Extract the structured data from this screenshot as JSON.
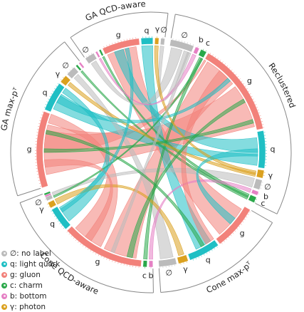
{
  "diagram": {
    "type": "chord",
    "sectors": [
      {
        "label": "Reclustered",
        "start": 10,
        "end": 116
      },
      {
        "label": "Cone max-pᵀ",
        "start": 120,
        "end": 176
      },
      {
        "label": "Cone QCD-aware",
        "start": 179,
        "end": 249
      },
      {
        "label": "GA max-pᵀ",
        "start": 252,
        "end": 322
      },
      {
        "label": "GA QCD-aware",
        "start": 325,
        "end": 7
      }
    ],
    "segments": [
      {
        "sector": 0,
        "type": "none",
        "label": "∅",
        "start": 10,
        "end": 22
      },
      {
        "sector": 0,
        "type": "bottom",
        "label": "b",
        "start": 23,
        "end": 25
      },
      {
        "sector": 0,
        "type": "charm",
        "label": "c",
        "start": 26,
        "end": 29
      },
      {
        "sector": 0,
        "type": "gluon",
        "label": "g",
        "start": 30,
        "end": 78
      },
      {
        "sector": 0,
        "type": "light",
        "label": "q",
        "start": 79,
        "end": 98
      },
      {
        "sector": 0,
        "type": "photon",
        "label": "γ",
        "start": 99,
        "end": 103
      },
      {
        "sector": 0,
        "type": "none",
        "label": "∅",
        "start": 104,
        "end": 109
      },
      {
        "sector": 0,
        "type": "bottom",
        "label": "b",
        "start": 110,
        "end": 112
      },
      {
        "sector": 0,
        "type": "charm",
        "label": "c",
        "start": 113,
        "end": 116
      },
      {
        "sector": 1,
        "type": "gluon",
        "label": "g",
        "start": 120,
        "end": 143
      },
      {
        "sector": 1,
        "type": "light",
        "label": "q",
        "start": 144,
        "end": 160
      },
      {
        "sector": 1,
        "type": "photon",
        "label": "γ",
        "start": 161,
        "end": 166
      },
      {
        "sector": 1,
        "type": "none",
        "label": "∅",
        "start": 167,
        "end": 176
      },
      {
        "sector": 2,
        "type": "bottom",
        "label": "b",
        "start": 179,
        "end": 181
      },
      {
        "sector": 2,
        "type": "charm",
        "label": "c",
        "start": 182,
        "end": 184
      },
      {
        "sector": 2,
        "type": "gluon",
        "label": "g",
        "start": 185,
        "end": 227
      },
      {
        "sector": 2,
        "type": "light",
        "label": "q",
        "start": 228,
        "end": 240
      },
      {
        "sector": 2,
        "type": "photon",
        "label": "γ",
        "start": 241,
        "end": 244
      },
      {
        "sector": 2,
        "type": "none",
        "label": "∅",
        "start": 245,
        "end": 247
      },
      {
        "sector": 2,
        "type": "bottom",
        "label": "b",
        "start": 247,
        "end": 248
      },
      {
        "sector": 2,
        "type": "charm",
        "label": "c",
        "start": 248,
        "end": 249
      },
      {
        "sector": 3,
        "type": "gluon",
        "label": "g",
        "start": 252,
        "end": 291
      },
      {
        "sector": 3,
        "type": "light",
        "label": "q",
        "start": 292,
        "end": 307
      },
      {
        "sector": 3,
        "type": "photon",
        "label": "γ",
        "start": 308,
        "end": 312
      },
      {
        "sector": 3,
        "type": "none",
        "label": "∅",
        "start": 313,
        "end": 318
      },
      {
        "sector": 3,
        "type": "charm",
        "label": "c",
        "start": 319,
        "end": 320
      },
      {
        "sector": 3,
        "type": "bottom",
        "label": "b",
        "start": 321,
        "end": 322
      },
      {
        "sector": 4,
        "type": "none",
        "label": "∅",
        "start": 325,
        "end": 330
      },
      {
        "sector": 4,
        "type": "bottom",
        "label": "b",
        "start": 331,
        "end": 332
      },
      {
        "sector": 4,
        "type": "charm",
        "label": "c",
        "start": 333,
        "end": 334
      },
      {
        "sector": 4,
        "type": "gluon",
        "label": "g",
        "start": 335,
        "end": 354
      },
      {
        "sector": 4,
        "type": "light",
        "label": "q",
        "start": 355,
        "end": 361
      },
      {
        "sector": 4,
        "type": "photon",
        "label": "γ",
        "start": 362,
        "end": 364
      },
      {
        "sector": 4,
        "type": "none",
        "label": "∅",
        "start": 365,
        "end": 367
      }
    ],
    "chords": [
      {
        "type": "gluon",
        "a": [
          32,
          50
        ],
        "b": [
          188,
          206
        ]
      },
      {
        "type": "gluon",
        "a": [
          52,
          76
        ],
        "b": [
          258,
          285
        ]
      },
      {
        "type": "gluon",
        "a": [
          122,
          140
        ],
        "b": [
          336,
          352
        ]
      },
      {
        "type": "gluon",
        "a": [
          208,
          225
        ],
        "b": [
          286,
          291
        ]
      },
      {
        "type": "gluon",
        "a": [
          270,
          282
        ],
        "b": [
          30,
          31
        ]
      },
      {
        "type": "light",
        "a": [
          82,
          90
        ],
        "b": [
          340,
          345
        ]
      },
      {
        "type": "light",
        "a": [
          91,
          97
        ],
        "b": [
          294,
          303
        ]
      },
      {
        "type": "light",
        "a": [
          146,
          155
        ],
        "b": [
          355,
          361
        ]
      },
      {
        "type": "light",
        "a": [
          230,
          238
        ],
        "b": [
          304,
          307
        ]
      },
      {
        "type": "none",
        "a": [
          11,
          17
        ],
        "b": [
          326,
          329
        ]
      },
      {
        "type": "none",
        "a": [
          104,
          109
        ],
        "b": [
          246,
          248
        ]
      },
      {
        "type": "none",
        "a": [
          168,
          175
        ],
        "b": [
          314,
          317
        ]
      },
      {
        "type": "none",
        "a": [
          18,
          21
        ],
        "b": [
          365,
          367
        ]
      },
      {
        "type": "charm",
        "a": [
          27,
          29
        ],
        "b": [
          182,
          184
        ]
      },
      {
        "type": "charm",
        "a": [
          113,
          115
        ],
        "b": [
          333,
          334
        ]
      },
      {
        "type": "charm",
        "a": [
          28,
          29
        ],
        "b": [
          245,
          246
        ]
      },
      {
        "type": "charm",
        "a": [
          319,
          320
        ],
        "b": [
          114,
          116
        ]
      },
      {
        "type": "photon",
        "a": [
          100,
          102
        ],
        "b": [
          362,
          364
        ]
      },
      {
        "type": "photon",
        "a": [
          162,
          165
        ],
        "b": [
          241,
          244
        ]
      },
      {
        "type": "photon",
        "a": [
          309,
          311
        ],
        "b": [
          101,
          103
        ]
      },
      {
        "type": "bottom",
        "a": [
          23,
          25
        ],
        "b": [
          331,
          332
        ]
      },
      {
        "type": "bottom",
        "a": [
          110,
          112
        ],
        "b": [
          179,
          181
        ]
      },
      {
        "type": "gluon",
        "a": [
          40,
          46
        ],
        "b": [
          144,
          149
        ]
      },
      {
        "type": "light",
        "a": [
          88,
          92
        ],
        "b": [
          128,
          132
        ]
      },
      {
        "type": "charm",
        "a": [
          190,
          193
        ],
        "b": [
          60,
          62
        ]
      },
      {
        "type": "charm",
        "a": [
          270,
          272
        ],
        "b": [
          72,
          74
        ]
      },
      {
        "type": "gluon",
        "a": [
          214,
          218
        ],
        "b": [
          262,
          266
        ]
      },
      {
        "type": "light",
        "a": [
          298,
          302
        ],
        "b": [
          46,
          48
        ]
      },
      {
        "type": "none",
        "a": [
          20,
          22
        ],
        "b": [
          200,
          202
        ]
      },
      {
        "type": "charm",
        "a": [
          150,
          152
        ],
        "b": [
          280,
          282
        ]
      },
      {
        "type": "light",
        "a": [
          236,
          239
        ],
        "b": [
          346,
          348
        ]
      }
    ]
  },
  "colors": {
    "none": "#bbbbbb",
    "light": "#1fbfc4",
    "gluon": "#f2817a",
    "charm": "#2aa84a",
    "bottom": "#e580c4",
    "photon": "#dba11f"
  },
  "legend": [
    {
      "type": "none",
      "label": "∅: no label"
    },
    {
      "type": "light",
      "label": "q: light quark"
    },
    {
      "type": "gluon",
      "label": "g: gluon"
    },
    {
      "type": "charm",
      "label": "c: charm"
    },
    {
      "type": "bottom",
      "label": "b: bottom"
    },
    {
      "type": "photon",
      "label": "γ: photon"
    }
  ]
}
